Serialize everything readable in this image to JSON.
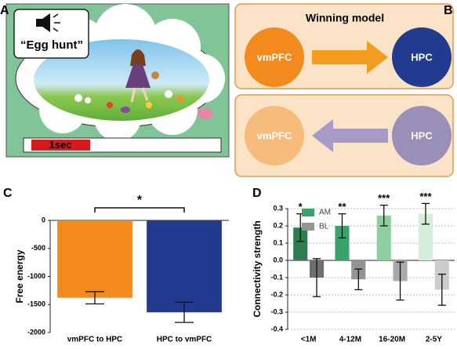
{
  "panel_labels": [
    "A",
    "B",
    "C",
    "D"
  ],
  "panel_a": {
    "speech": "“Egg hunt”",
    "timer": "1sec"
  },
  "panel_b": {
    "title": "Winning model",
    "top": {
      "source": "vmPFC",
      "target": "HPC"
    },
    "bottom": {
      "source": "vmPFC",
      "target": "HPC"
    }
  },
  "chart_data": [
    {
      "type": "bar",
      "categories": [
        "vmPFC to HPC",
        "HPC to vmPFC"
      ],
      "values": [
        -1380,
        -1640
      ],
      "errors": [
        110,
        180
      ],
      "colors": [
        "#f28a1e",
        "#233b8f"
      ],
      "ylabel": "Free energy",
      "significance": "*",
      "ylim": [
        -2000,
        0
      ],
      "yticks": [
        0,
        -500,
        -1000,
        -1500,
        -2000
      ]
    },
    {
      "type": "grouped_bar",
      "categories": [
        "<1M",
        "4-12M",
        "16-20M",
        "2-5Y"
      ],
      "series": [
        {
          "name": "AM",
          "colors": [
            "#2e7d4f",
            "#3aa36a",
            "#8dcf9e",
            "#d5eedb"
          ],
          "values": [
            0.19,
            0.2,
            0.26,
            0.27
          ],
          "errors": [
            0.08,
            0.07,
            0.06,
            0.06
          ]
        },
        {
          "name": "BL",
          "colors": [
            "#6f6f6f",
            "#949494",
            "#a9a9a9",
            "#cccccc"
          ],
          "values": [
            -0.1,
            -0.11,
            -0.12,
            -0.17
          ],
          "errors": [
            0.11,
            0.06,
            0.11,
            0.09
          ]
        }
      ],
      "annotations": [
        "*",
        "**",
        "***",
        "***"
      ],
      "ylabel": "Connectivity strength",
      "ylim": [
        -0.4,
        0.3
      ],
      "yticks": [
        -0.4,
        -0.3,
        -0.2,
        -0.1,
        {
          "value": 0,
          "label": "0.0"
        },
        0.1,
        0.2,
        0.3
      ],
      "grid": true
    }
  ]
}
